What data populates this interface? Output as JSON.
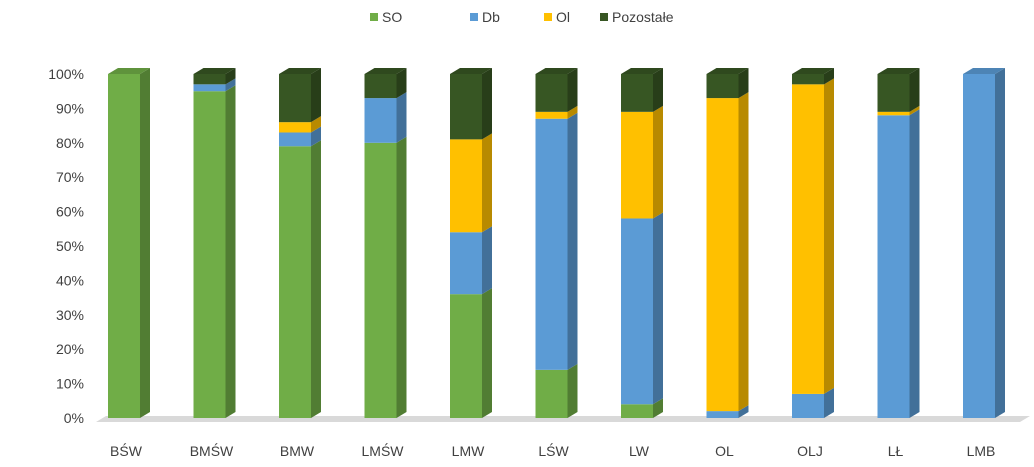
{
  "chart_data": {
    "type": "bar",
    "stacked": true,
    "three_d": true,
    "categories": [
      "BŚW",
      "BMŚW",
      "BMW",
      "LMŚW",
      "LMW",
      "LŚW",
      "LW",
      "OL",
      "OLJ",
      "LŁ",
      "LMB"
    ],
    "series": [
      {
        "name": "SO",
        "color": "#70ad47",
        "values": [
          100,
          95,
          79,
          80,
          36,
          14,
          4,
          0,
          0,
          0,
          0
        ]
      },
      {
        "name": "Db",
        "color": "#5b9bd5",
        "values": [
          0,
          2,
          4,
          13,
          18,
          73,
          54,
          2,
          7,
          88,
          100
        ]
      },
      {
        "name": "Ol",
        "color": "#ffc000",
        "values": [
          0,
          0,
          3,
          0,
          27,
          2,
          31,
          91,
          90,
          1,
          0
        ]
      },
      {
        "name": "Pozostałe",
        "color": "#375623",
        "values": [
          0,
          3,
          14,
          7,
          19,
          11,
          11,
          7,
          3,
          11,
          0
        ]
      }
    ],
    "ylim": [
      0,
      100
    ],
    "y_ticks": [
      "0%",
      "10%",
      "20%",
      "30%",
      "40%",
      "50%",
      "60%",
      "70%",
      "80%",
      "90%",
      "100%"
    ],
    "legend_position": "top",
    "grid": false
  }
}
